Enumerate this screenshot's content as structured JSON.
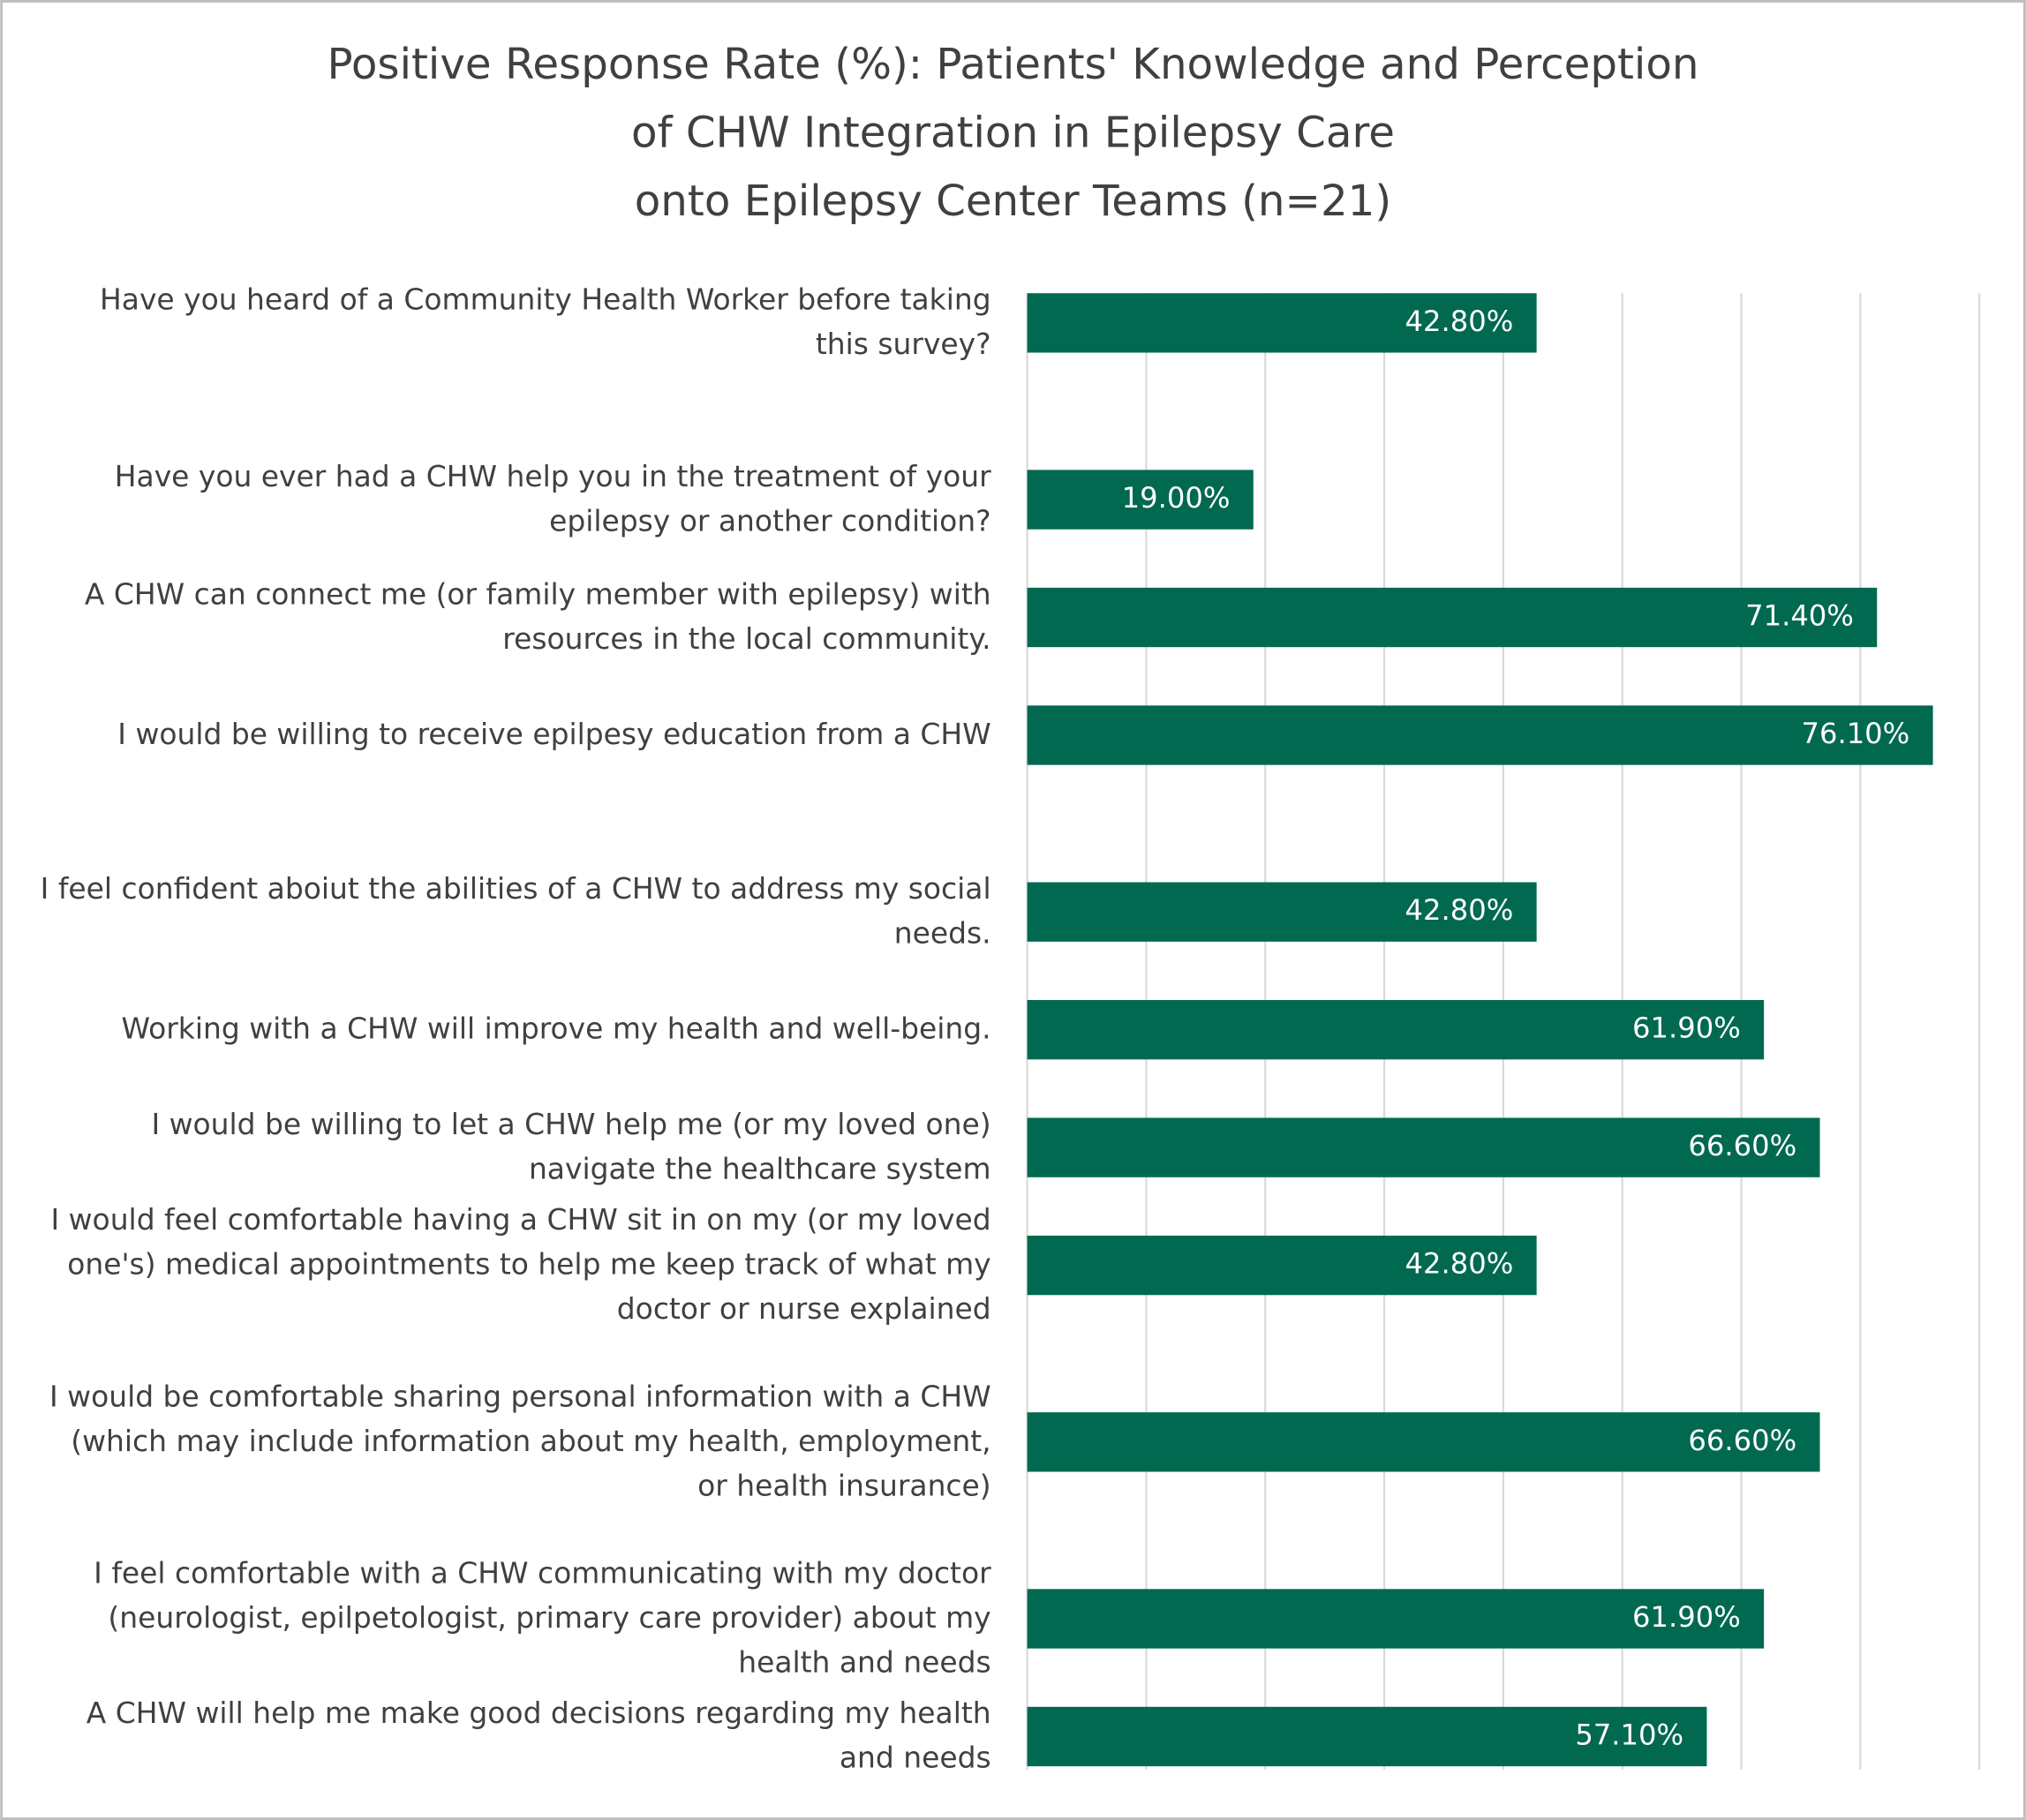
{
  "chart_data": {
    "type": "bar",
    "orientation": "horizontal",
    "title": "Positive Response Rate (%): Patients' Knowledge and Perception\nof CHW Integration in Epilepsy Care\nonto Epilepsy Center Teams  (n=21)",
    "categories": [
      "Have you heard of a Community Health Worker before taking\nthis survey?",
      "Have you ever had a CHW help you in the treatment of your\nepilepsy or another condition?",
      "A CHW can connect me (or family member with epilepsy) with\nresources in the local community.",
      "I would be willing to receive epilpesy education from a CHW",
      "I feel confident aboiut the abilities of a CHW to address my social\nneeds.",
      "Working with a CHW will improve my health and well-being.",
      "I would be willing to let a CHW help me (or my loved one)\nnavigate the healthcare system",
      "I would feel comfortable having a CHW sit in on my (or my loved\none's) medical appointments to help me keep track of what my\ndoctor or nurse explained",
      "I would be comfortable sharing personal information with a CHW\n(which may include information about my health, employment,\nor health insurance)",
      "I feel comfortable with a CHW communicating with my doctor\n(neurologist, epilpetologist, primary care provider) about my\nhealth and needs",
      "A CHW will help me make good decisions regarding my health\nand needs"
    ],
    "values": [
      42.8,
      19.0,
      71.4,
      76.1,
      42.8,
      61.9,
      66.6,
      42.8,
      66.6,
      61.9,
      57.1
    ],
    "value_labels": [
      "42.80%",
      "19.00%",
      "71.40%",
      "76.10%",
      "42.80%",
      "61.90%",
      "66.60%",
      "42.80%",
      "66.60%",
      "61.90%",
      "57.10%"
    ],
    "color": "#006950",
    "xlim": [
      0,
      80
    ],
    "xticks": [
      0,
      10,
      20,
      30,
      40,
      50,
      60,
      70,
      80
    ],
    "grid": true
  }
}
